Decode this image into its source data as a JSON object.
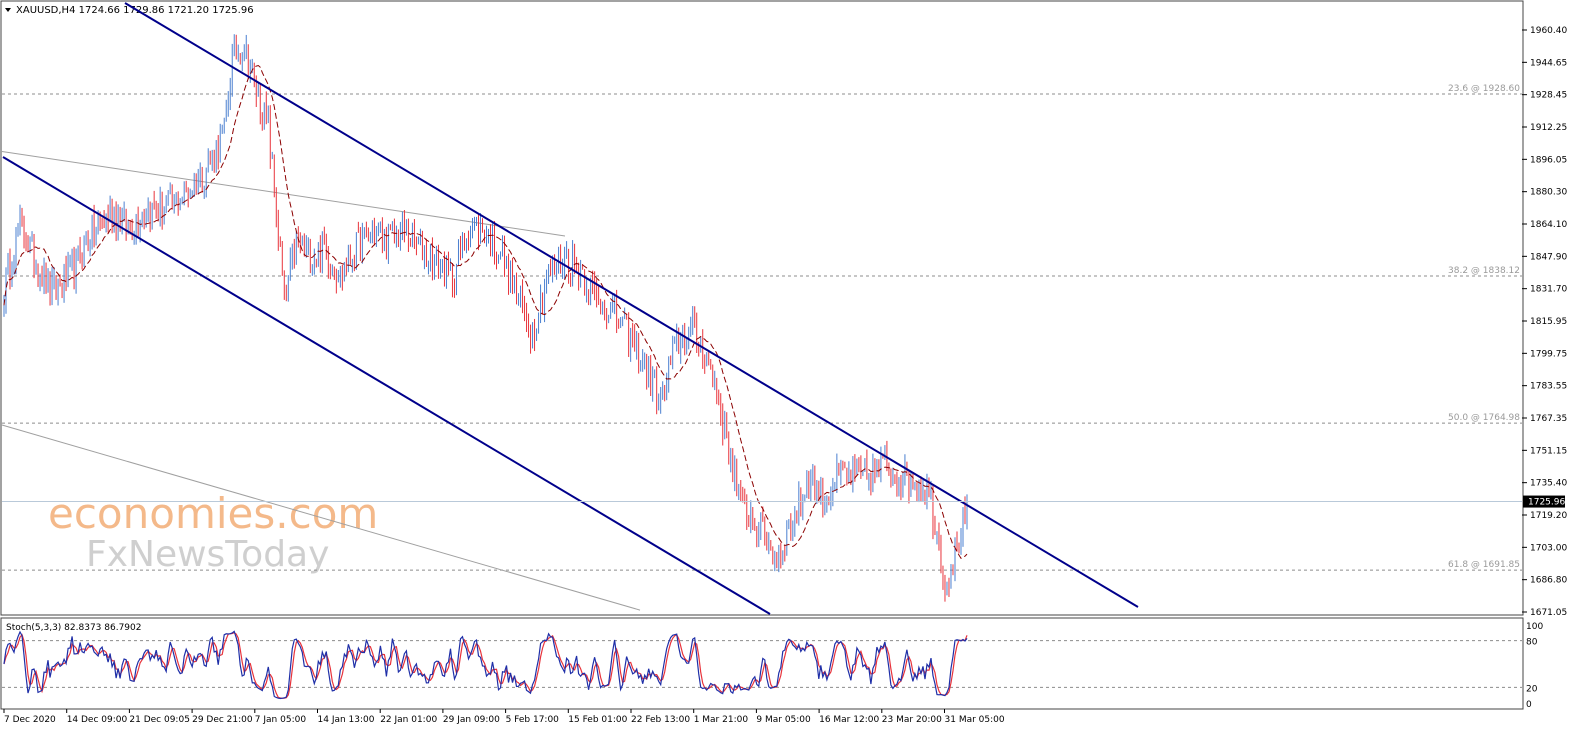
{
  "header": {
    "symbol_line": "XAUUSD,H4  1724.66 1729.86 1721.20 1725.96"
  },
  "watermark": {
    "line1": "economies.com",
    "line2": "FxNewsToday"
  },
  "fib_levels": [
    {
      "label": "23.6 @ 1928.60",
      "value": 1928.6
    },
    {
      "label": "38.2 @ 1838.12",
      "value": 1838.12
    },
    {
      "label": "50.0 @ 1764.98",
      "value": 1764.98
    },
    {
      "label": "61.8 @ 1691.85",
      "value": 1691.85
    }
  ],
  "current_price": {
    "label": "1725.96",
    "value": 1725.96
  },
  "price_axis": {
    "min": 1671.05,
    "max": 1960.4,
    "ticks": [
      "1960.40",
      "1944.65",
      "1928.45",
      "1912.25",
      "1896.05",
      "1880.30",
      "1864.10",
      "1847.90",
      "1831.70",
      "1815.95",
      "1799.75",
      "1783.55",
      "1767.35",
      "1751.15",
      "1735.40",
      "1719.20",
      "1703.00",
      "1686.80",
      "1671.05"
    ]
  },
  "time_axis": {
    "ticks": [
      "7 Dec 2020",
      "14 Dec 09:00",
      "21 Dec 09:05",
      "29 Dec 21:00",
      "7 Jan 05:00",
      "14 Jan 13:00",
      "22 Jan 01:00",
      "29 Jan 09:00",
      "5 Feb 17:00",
      "15 Feb 01:00",
      "22 Feb 13:00",
      "1 Mar 21:00",
      "9 Mar 05:00",
      "16 Mar 12:00",
      "23 Mar 20:00",
      "31 Mar 05:00"
    ]
  },
  "stoch": {
    "label": "Stoch(5,3,3) 82.8373 86.7902",
    "k": 82.8373,
    "d": 86.7902,
    "axis_ticks": [
      "100",
      "80",
      "20",
      "0"
    ],
    "levels": [
      80,
      20
    ]
  },
  "colors": {
    "bull": "#4a7fd0",
    "bear": "#e8333b",
    "channel": "#00008b",
    "ma": "#8b0000",
    "stoch_main": "#1f2fa8",
    "stoch_signal": "#e8333b",
    "watermark": "#f3b07a",
    "watermark2": "#bfbfbf"
  },
  "chart_data": {
    "type": "candlestick",
    "timeframe": "H4",
    "anchors": [
      [
        0,
        1830
      ],
      [
        8,
        1865
      ],
      [
        16,
        1845
      ],
      [
        24,
        1830
      ],
      [
        34,
        1840
      ],
      [
        44,
        1860
      ],
      [
        54,
        1870
      ],
      [
        62,
        1862
      ],
      [
        70,
        1870
      ],
      [
        80,
        1872
      ],
      [
        90,
        1878
      ],
      [
        100,
        1890
      ],
      [
        110,
        1908
      ],
      [
        114,
        1948
      ],
      [
        120,
        1952
      ],
      [
        126,
        1930
      ],
      [
        132,
        1912
      ],
      [
        136,
        1870
      ],
      [
        140,
        1825
      ],
      [
        146,
        1855
      ],
      [
        154,
        1848
      ],
      [
        160,
        1852
      ],
      [
        168,
        1838
      ],
      [
        176,
        1852
      ],
      [
        184,
        1860
      ],
      [
        192,
        1857
      ],
      [
        200,
        1860
      ],
      [
        208,
        1852
      ],
      [
        216,
        1845
      ],
      [
        224,
        1838
      ],
      [
        232,
        1862
      ],
      [
        240,
        1860
      ],
      [
        248,
        1850
      ],
      [
        256,
        1828
      ],
      [
        264,
        1810
      ],
      [
        272,
        1840
      ],
      [
        280,
        1848
      ],
      [
        288,
        1842
      ],
      [
        296,
        1826
      ],
      [
        304,
        1820
      ],
      [
        312,
        1808
      ],
      [
        320,
        1795
      ],
      [
        328,
        1775
      ],
      [
        336,
        1805
      ],
      [
        344,
        1812
      ],
      [
        350,
        1800
      ],
      [
        356,
        1780
      ],
      [
        362,
        1752
      ],
      [
        368,
        1725
      ],
      [
        374,
        1718
      ],
      [
        380,
        1710
      ],
      [
        386,
        1696
      ],
      [
        392,
        1712
      ],
      [
        396,
        1720
      ],
      [
        402,
        1738
      ],
      [
        410,
        1728
      ],
      [
        418,
        1740
      ],
      [
        426,
        1738
      ],
      [
        434,
        1740
      ],
      [
        440,
        1745
      ],
      [
        448,
        1738
      ],
      [
        456,
        1736
      ],
      [
        462,
        1730
      ],
      [
        466,
        1712
      ],
      [
        470,
        1684
      ],
      [
        474,
        1696
      ],
      [
        478,
        1712
      ],
      [
        482,
        1726
      ]
    ],
    "candles_total": 482,
    "ma_type": "moving average (dashed)",
    "channel": "descending"
  }
}
